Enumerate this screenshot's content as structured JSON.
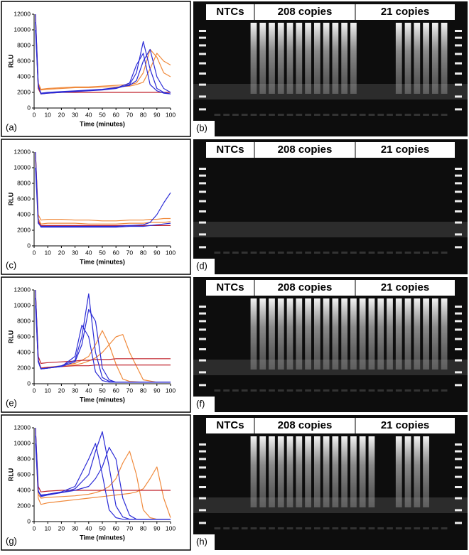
{
  "chart_data": [
    {
      "type": "line",
      "label": "(a)",
      "xlabel": "Time (minutes)",
      "ylabel": "RLU",
      "xlim": [
        0,
        100
      ],
      "ylim": [
        0,
        12000
      ],
      "xticks": [
        0,
        10,
        20,
        30,
        40,
        50,
        60,
        70,
        80,
        90,
        100
      ],
      "yticks": [
        0,
        2000,
        4000,
        6000,
        8000,
        10000,
        12000
      ],
      "x": [
        1,
        3,
        5,
        10,
        20,
        30,
        40,
        50,
        60,
        70,
        75,
        80,
        85,
        90,
        95,
        100
      ],
      "series": [
        {
          "color": "#f08a3c",
          "values": [
            12000,
            3200,
            2400,
            2500,
            2600,
            2700,
            2700,
            2800,
            2900,
            3000,
            3200,
            4500,
            7500,
            6500,
            4500,
            4000
          ]
        },
        {
          "color": "#f08a3c",
          "values": [
            11000,
            3000,
            2300,
            2400,
            2500,
            2600,
            2600,
            2700,
            2700,
            2800,
            3000,
            3300,
            5000,
            7000,
            6000,
            5500
          ]
        },
        {
          "color": "#c0202a",
          "values": [
            12000,
            2500,
            1800,
            1900,
            2000,
            2000,
            2000,
            2000,
            2000,
            2000,
            2000,
            2000,
            2000,
            2000,
            2000,
            2000
          ]
        },
        {
          "color": "#2b2bd6",
          "values": [
            12000,
            3000,
            1800,
            1900,
            2000,
            2100,
            2200,
            2300,
            2500,
            3000,
            4500,
            8500,
            5000,
            2500,
            2000,
            1800
          ]
        },
        {
          "color": "#2b2bd6",
          "values": [
            10000,
            2800,
            1900,
            2000,
            2100,
            2200,
            2300,
            2400,
            2600,
            2900,
            3500,
            6000,
            7500,
            4000,
            2500,
            2000
          ]
        },
        {
          "color": "#2b2bd6",
          "values": [
            11000,
            2900,
            1850,
            1950,
            2050,
            2150,
            2250,
            2350,
            2550,
            3200,
            5500,
            7000,
            3000,
            2200,
            1900,
            1800
          ]
        }
      ]
    },
    {
      "type": "line",
      "label": "(c)",
      "xlabel": "Time (minutes)",
      "ylabel": "RLU",
      "xlim": [
        0,
        100
      ],
      "ylim": [
        0,
        12000
      ],
      "xticks": [
        0,
        10,
        20,
        30,
        40,
        50,
        60,
        70,
        80,
        90,
        100
      ],
      "yticks": [
        0,
        2000,
        4000,
        6000,
        8000,
        10000,
        12000
      ],
      "x": [
        1,
        3,
        5,
        10,
        20,
        30,
        40,
        50,
        60,
        70,
        80,
        85,
        90,
        95,
        100
      ],
      "series": [
        {
          "color": "#f08a3c",
          "values": [
            12000,
            4000,
            3300,
            3400,
            3400,
            3300,
            3300,
            3200,
            3200,
            3300,
            3300,
            3400,
            3400,
            3500,
            3500
          ]
        },
        {
          "color": "#f08a3c",
          "values": [
            11000,
            3500,
            2800,
            2900,
            2900,
            2900,
            2800,
            2800,
            2800,
            2900,
            2900,
            3000,
            3000,
            3000,
            3100
          ]
        },
        {
          "color": "#c0202a",
          "values": [
            12000,
            3200,
            2600,
            2600,
            2600,
            2600,
            2600,
            2600,
            2600,
            2600,
            2600,
            2600,
            2600,
            2600,
            2600
          ]
        },
        {
          "color": "#2b2bd6",
          "values": [
            12000,
            3000,
            2400,
            2400,
            2400,
            2400,
            2400,
            2400,
            2400,
            2500,
            2500,
            2600,
            2700,
            2800,
            2900
          ]
        },
        {
          "color": "#2b2bd6",
          "values": [
            10000,
            2900,
            2500,
            2500,
            2500,
            2500,
            2500,
            2500,
            2500,
            2600,
            2700,
            3000,
            4000,
            5500,
            6800
          ]
        }
      ]
    },
    {
      "type": "line",
      "label": "(e)",
      "xlabel": "Time (minutes)",
      "ylabel": "RLU",
      "xlim": [
        0,
        100
      ],
      "ylim": [
        0,
        12000
      ],
      "xticks": [
        0,
        10,
        20,
        30,
        40,
        50,
        60,
        70,
        80,
        90,
        100
      ],
      "yticks": [
        0,
        2000,
        4000,
        6000,
        8000,
        10000,
        12000
      ],
      "x": [
        1,
        3,
        5,
        10,
        20,
        30,
        35,
        40,
        45,
        50,
        55,
        60,
        65,
        70,
        80,
        90,
        100
      ],
      "series": [
        {
          "color": "#f08a3c",
          "values": [
            12000,
            3000,
            2000,
            2100,
            2300,
            2600,
            3000,
            3500,
            5000,
            6800,
            5000,
            2500,
            600,
            300,
            200,
            200,
            200
          ]
        },
        {
          "color": "#f08a3c",
          "values": [
            11000,
            2900,
            2000,
            2100,
            2200,
            2400,
            2600,
            2900,
            3300,
            4000,
            5000,
            6000,
            6300,
            4000,
            500,
            200,
            200
          ]
        },
        {
          "color": "#c0202a",
          "values": [
            12000,
            3500,
            2600,
            2700,
            2800,
            2900,
            3000,
            3000,
            3100,
            3100,
            3100,
            3200,
            3200,
            3200,
            3200,
            3200,
            3200
          ]
        },
        {
          "color": "#c0202a",
          "values": [
            11000,
            3000,
            2000,
            2100,
            2200,
            2300,
            2300,
            2300,
            2400,
            2400,
            2400,
            2400,
            2400,
            2400,
            2400,
            2400,
            2400
          ]
        },
        {
          "color": "#2b2bd6",
          "values": [
            12000,
            3000,
            1900,
            2000,
            2300,
            3000,
            6000,
            11500,
            4000,
            800,
            300,
            200,
            200,
            200,
            200,
            200,
            200
          ]
        },
        {
          "color": "#2b2bd6",
          "values": [
            10000,
            2800,
            1900,
            2000,
            2200,
            2800,
            5000,
            9500,
            8000,
            2000,
            500,
            200,
            200,
            200,
            200,
            200,
            200
          ]
        },
        {
          "color": "#2b2bd6",
          "values": [
            11000,
            2900,
            1900,
            2000,
            2200,
            3500,
            7500,
            6000,
            1500,
            400,
            200,
            200,
            200,
            200,
            200,
            200,
            200
          ]
        }
      ]
    },
    {
      "type": "line",
      "label": "(g)",
      "xlabel": "Time (minutes)",
      "ylabel": "RLU",
      "xlim": [
        0,
        100
      ],
      "ylim": [
        0,
        12000
      ],
      "xticks": [
        0,
        10,
        20,
        30,
        40,
        50,
        60,
        70,
        80,
        90,
        100
      ],
      "yticks": [
        0,
        2000,
        4000,
        6000,
        8000,
        10000,
        12000
      ],
      "x": [
        1,
        3,
        5,
        10,
        20,
        30,
        40,
        45,
        50,
        55,
        60,
        65,
        70,
        75,
        80,
        85,
        90,
        95,
        100
      ],
      "series": [
        {
          "color": "#f08a3c",
          "values": [
            12000,
            3500,
            3000,
            3100,
            3200,
            3300,
            3500,
            3700,
            4000,
            4500,
            5500,
            7500,
            9000,
            6000,
            1500,
            500,
            300,
            300,
            300
          ]
        },
        {
          "color": "#f08a3c",
          "values": [
            11000,
            3000,
            2200,
            2400,
            2600,
            2800,
            3000,
            3100,
            3200,
            3300,
            3400,
            3500,
            3600,
            3800,
            4200,
            5500,
            7000,
            3000,
            500
          ]
        },
        {
          "color": "#c0202a",
          "values": [
            12000,
            4500,
            3800,
            3900,
            4000,
            4000,
            4000,
            4000,
            4000,
            4000,
            4000,
            4000,
            4000,
            4000,
            4000,
            4000,
            4000,
            4000,
            4000
          ]
        },
        {
          "color": "#2b2bd6",
          "values": [
            12000,
            4000,
            3200,
            3400,
            3700,
            4200,
            6000,
            9000,
            11500,
            7000,
            2000,
            600,
            300,
            300,
            300,
            300,
            300,
            300,
            300
          ]
        },
        {
          "color": "#2b2bd6",
          "values": [
            10000,
            3800,
            3300,
            3500,
            3800,
            4500,
            8000,
            10000,
            6000,
            1500,
            500,
            300,
            300,
            300,
            300,
            300,
            300,
            300,
            300
          ]
        },
        {
          "color": "#2b2bd6",
          "values": [
            11000,
            3900,
            3400,
            3500,
            3700,
            4000,
            4500,
            5500,
            7000,
            9500,
            8000,
            3000,
            800,
            300,
            300,
            300,
            300,
            300,
            300
          ]
        }
      ]
    }
  ],
  "gels": [
    {
      "label": "(b)",
      "headers": [
        "NTCs",
        "208 copies",
        "21 copies"
      ]
    },
    {
      "label": "(d)",
      "headers": [
        "NTCs",
        "208 copies",
        "21 copies"
      ]
    },
    {
      "label": "(f)",
      "headers": [
        "NTCs",
        "208 copies",
        "21 copies"
      ]
    },
    {
      "label": "(h)",
      "headers": [
        "NTCs",
        "208 copies",
        "21 copies"
      ]
    }
  ]
}
